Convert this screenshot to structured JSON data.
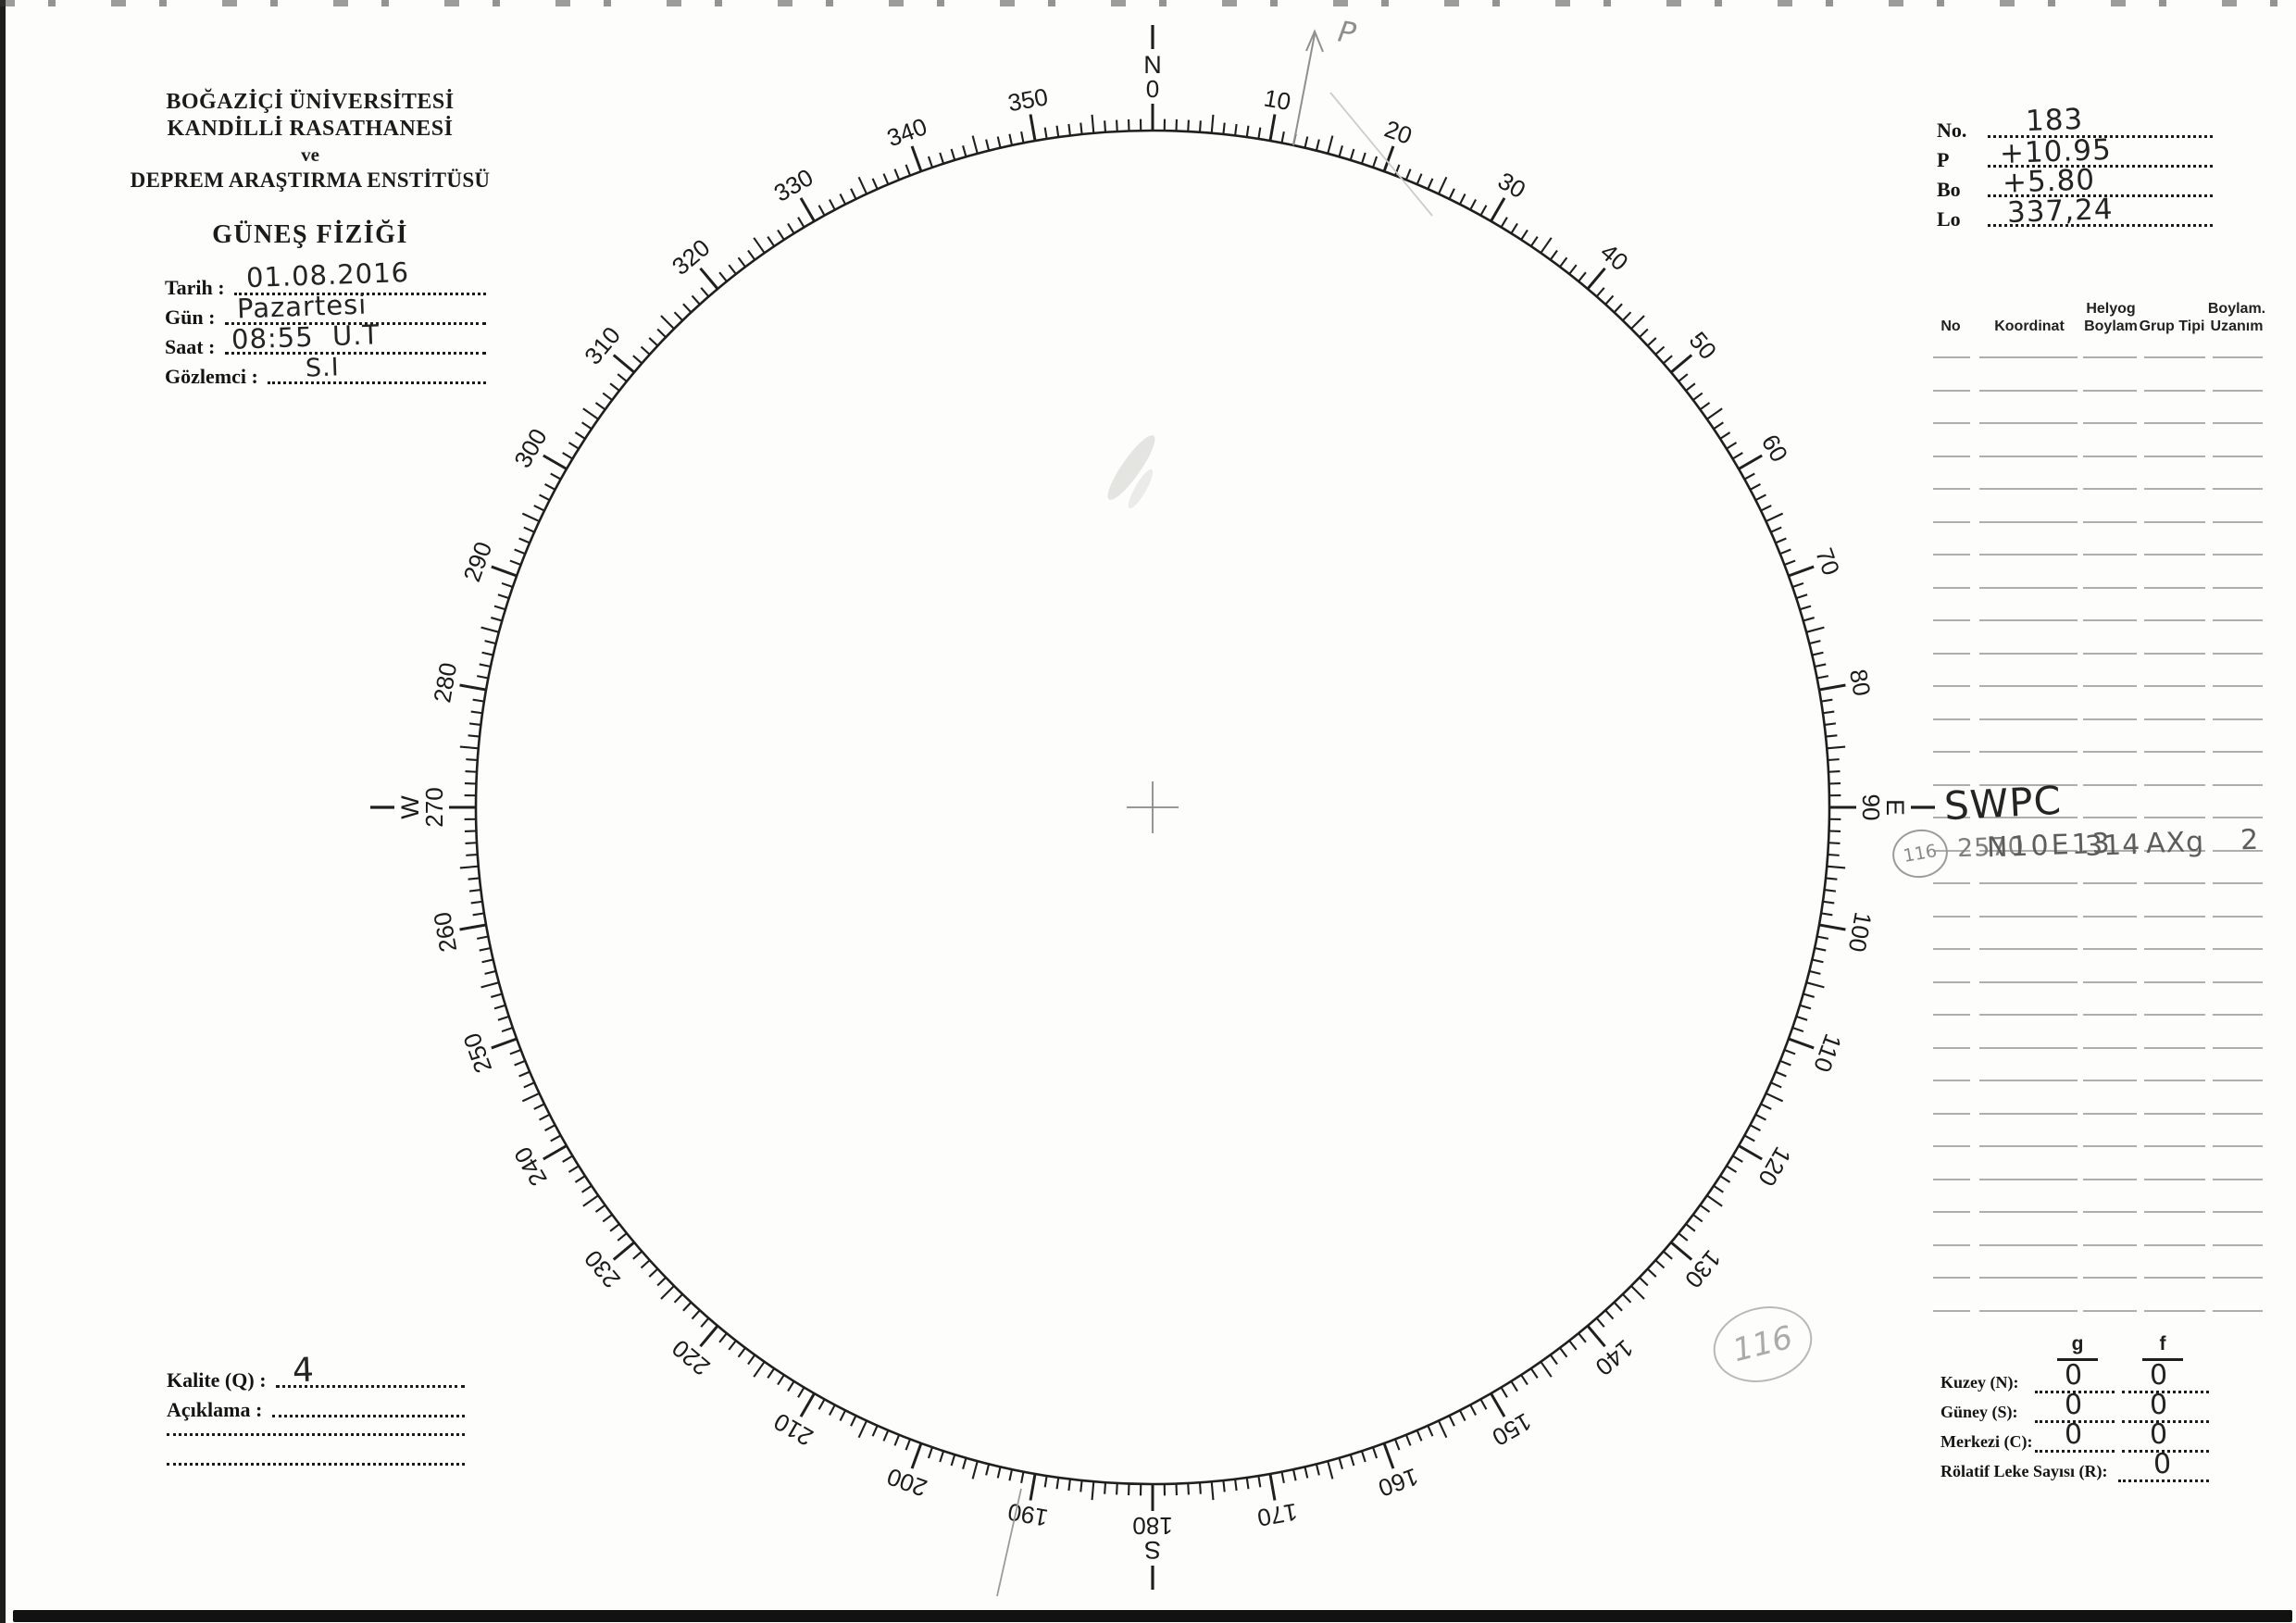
{
  "institution": {
    "line1": "BOĞAZİÇİ ÜNİVERSİTESİ",
    "line2": "KANDİLLİ RASATHANESİ",
    "line3": "ve",
    "line4": "DEPREM ARAŞTIRMA ENSTİTÜSÜ",
    "section_title": "GÜNEŞ FİZİĞİ"
  },
  "observation": {
    "tarih_label": "Tarih : ",
    "tarih_value": "01.08.2016",
    "gun_label": "Gün : ",
    "gun_value": "Pazartesi",
    "saat_label": "Saat : ",
    "saat_value": "08:55  U.T",
    "gozlemci_label": "Gözlemci : ",
    "gozlemci_value": "S.I"
  },
  "ephemeris": {
    "no_label": "No.",
    "no_value": "183",
    "p_label": "P",
    "p_value": "+10.95",
    "bo_label": "Bo",
    "bo_value": "+5.80",
    "lo_label": "Lo",
    "lo_value": "337,24"
  },
  "dial": {
    "tick_step_deg": 1,
    "mid_tick_step_deg": 5,
    "label_step_deg": 10,
    "full_circle_deg": 360,
    "cardinal_north": "N",
    "cardinal_east": "E",
    "cardinal_south": "S",
    "cardinal_west": "W",
    "pencil_arrow_label": "P",
    "pencil_circled_note": "116"
  },
  "spot_table": {
    "headers": [
      "No",
      "Koordinat",
      "Helyog Boylam",
      "Grup Tipi",
      "Boylam. Uzanım"
    ],
    "blank_rows_above": 14,
    "blank_rows_below": 14,
    "annotation_source": "SWPC",
    "row": {
      "circled_no": "116",
      "no": "2570",
      "koordinat": "N10E13",
      "helyog_boylam": "314",
      "grup_tipi": "AXg",
      "boylam_uzanim": "2"
    }
  },
  "quality": {
    "kalite_label": "Kalite (Q) : ",
    "kalite_value": "4",
    "aciklama_label": "Açıklama : "
  },
  "counts": {
    "col_g": "g",
    "col_f": "f",
    "rows": [
      {
        "label": "Kuzey (N):",
        "g": "0",
        "f": "0"
      },
      {
        "label": "Güney (S):",
        "g": "0",
        "f": "0"
      },
      {
        "label": "Merkezi (C):",
        "g": "0",
        "f": "0"
      }
    ],
    "relative_label": "Rölatif Leke Sayısı (R): ",
    "relative_value": "0"
  }
}
